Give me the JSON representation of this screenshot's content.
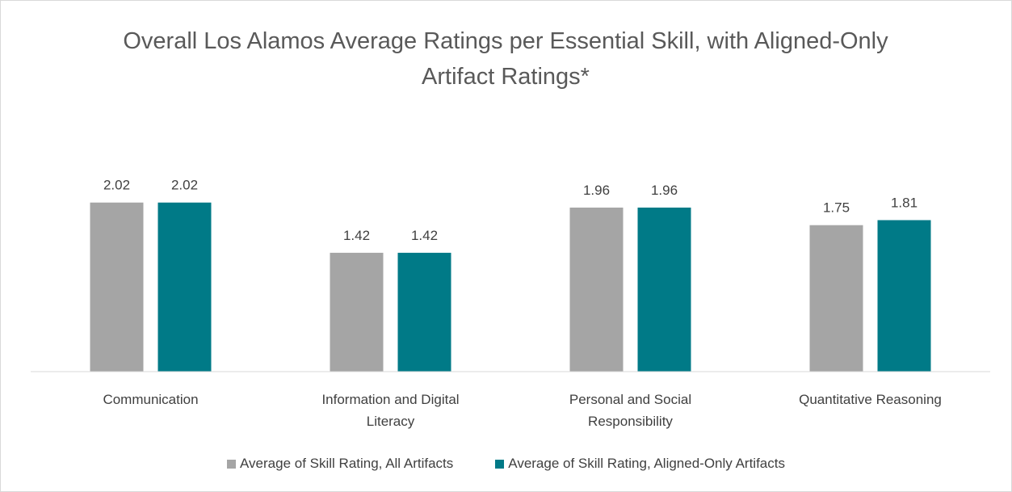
{
  "chart_data": {
    "type": "bar",
    "title": "Overall Los Alamos Average Ratings per Essential Skill, with Aligned-Only Artifact Ratings*",
    "categories": [
      "Communication",
      "Information and Digital Literacy",
      "Personal and Social Responsibility",
      "Quantitative Reasoning"
    ],
    "series": [
      {
        "name": "Average of Skill Rating, All Artifacts",
        "color": "#a5a5a5",
        "values": [
          2.02,
          1.42,
          1.96,
          1.75
        ]
      },
      {
        "name": "Average of Skill Rating, Aligned-Only Artifacts",
        "color": "#007a87",
        "values": [
          2.02,
          1.42,
          1.96,
          1.81
        ]
      }
    ],
    "ylim": [
      0,
      2.5
    ],
    "legend": "bottom"
  }
}
